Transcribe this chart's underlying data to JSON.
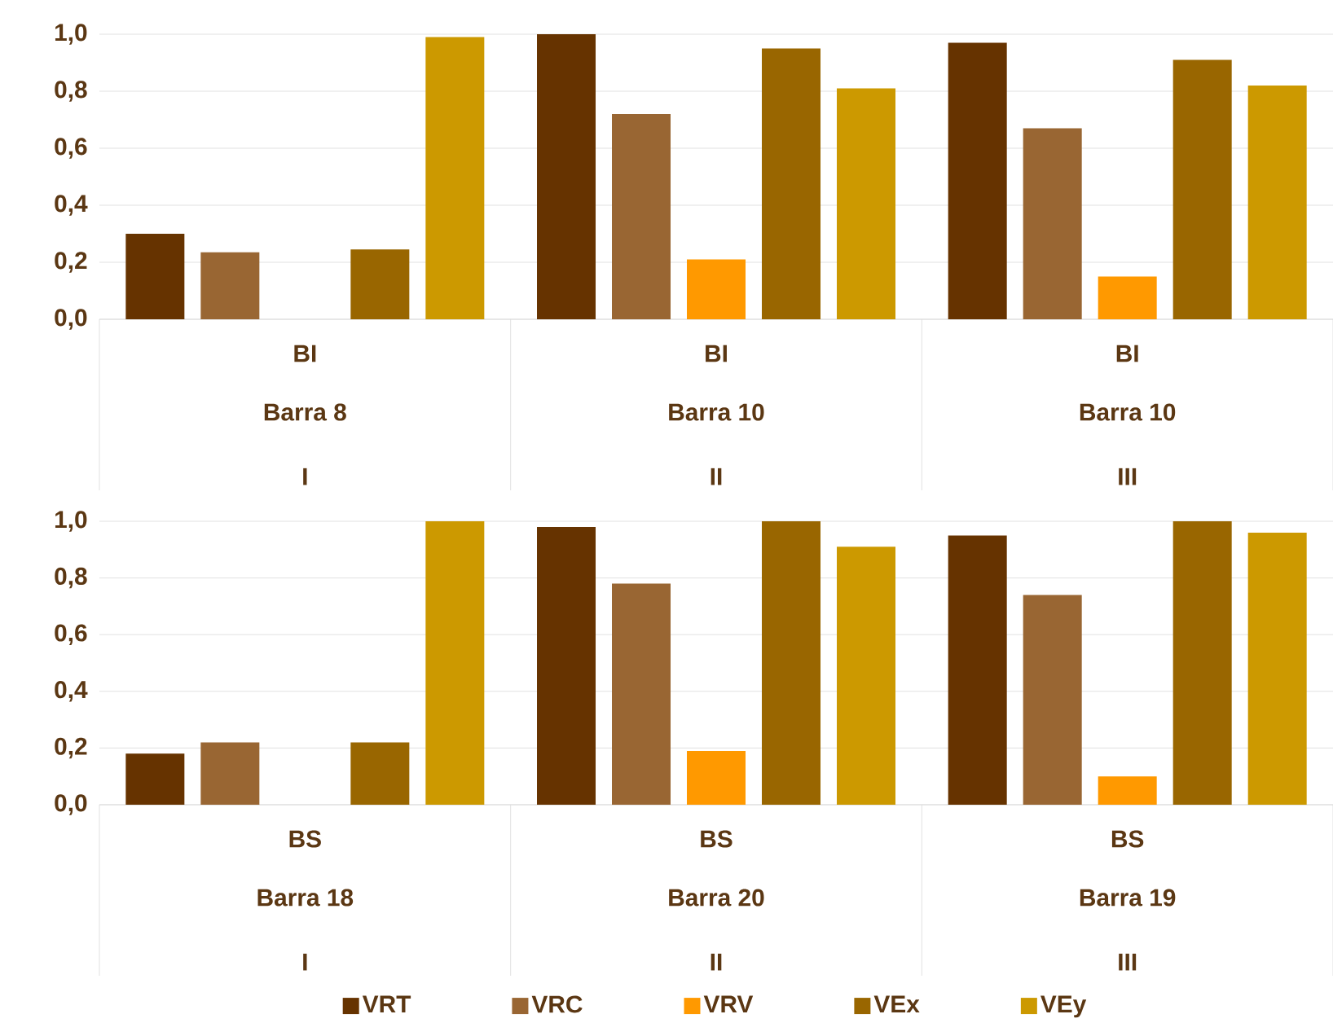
{
  "chart_data": [
    {
      "type": "bar",
      "categories": [
        "I",
        "II",
        "III"
      ],
      "series": [
        {
          "color": "#663300",
          "values": [
            0.3,
            1.0,
            0.97
          ]
        },
        {
          "color": "#996633",
          "values": [
            0.235,
            0.72,
            0.67
          ]
        },
        {
          "color": "#ff9900",
          "values": [
            null,
            0.21,
            0.15
          ]
        },
        {
          "color": "#996600",
          "values": [
            0.245,
            0.95,
            0.91
          ]
        },
        {
          "color": "#cc9900",
          "values": [
            0.99,
            0.81,
            0.82
          ]
        }
      ],
      "ylim": [
        0,
        1
      ],
      "yticks": [
        {
          "value": 0,
          "label": "0,0"
        },
        {
          "value": 0.2,
          "label": "0,2"
        },
        {
          "value": 0.4,
          "label": "0,4"
        },
        {
          "value": 0.6,
          "label": "0,6"
        },
        {
          "value": 0.8,
          "label": "0,8"
        },
        {
          "value": 1,
          "label": "1,0"
        }
      ],
      "grid": "y",
      "legend": false,
      "annotations": [
        "BI",
        "Barra 8",
        "BI",
        "Barra 10",
        "BI",
        "Barra 10"
      ]
    },
    {
      "type": "bar",
      "categories": [
        "I",
        "II",
        "III"
      ],
      "series": [
        {
          "name": "VRT",
          "color": "#663300",
          "values": [
            0.18,
            0.98,
            0.95
          ]
        },
        {
          "name": "VRC",
          "color": "#996633",
          "values": [
            0.22,
            0.78,
            0.74
          ]
        },
        {
          "name": "VRV",
          "color": "#ff9900",
          "values": [
            null,
            0.19,
            0.1
          ]
        },
        {
          "name": "VEx",
          "color": "#996600",
          "values": [
            0.22,
            1.0,
            1.0
          ]
        },
        {
          "name": "VEy",
          "color": "#cc9900",
          "values": [
            1.0,
            0.91,
            0.96
          ]
        }
      ],
      "ylim": [
        0,
        1
      ],
      "yticks": [
        {
          "value": 0,
          "label": "0,0"
        },
        {
          "value": 0.2,
          "label": "0,2"
        },
        {
          "value": 0.4,
          "label": "0,4"
        },
        {
          "value": 0.6,
          "label": "0,6"
        },
        {
          "value": 0.8,
          "label": "0,8"
        },
        {
          "value": 1,
          "label": "1,0"
        }
      ],
      "grid": "y",
      "legend": "bottom",
      "annotations": [
        "BS",
        "Barra 18",
        "BS",
        "Barra 20",
        "BS",
        "Barra 19"
      ]
    }
  ]
}
